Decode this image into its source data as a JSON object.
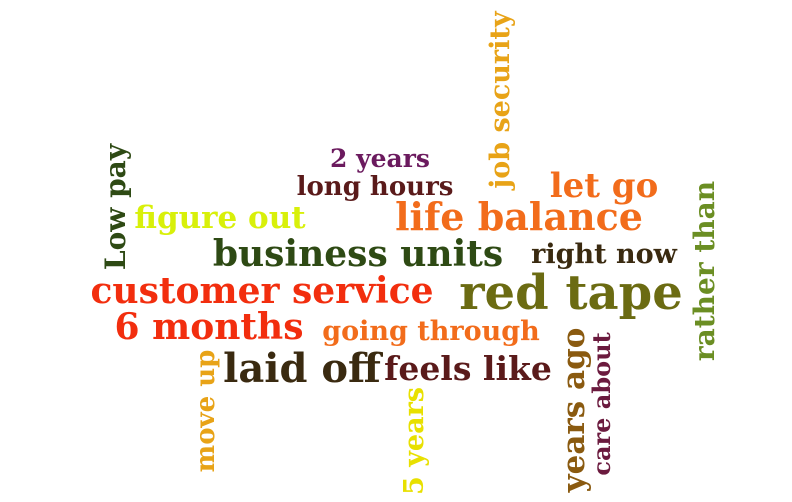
{
  "words": [
    {
      "text": "job security",
      "color": "#E8A317"
    },
    {
      "text": "2 years",
      "color": "#6B1A5E"
    },
    {
      "text": "long hours",
      "color": "#5A1A1A"
    },
    {
      "text": "let go",
      "color": "#F26C1B"
    },
    {
      "text": "Low pay",
      "color": "#2E4A14"
    },
    {
      "text": "figure out",
      "color": "#D8F00A"
    },
    {
      "text": "life balance",
      "color": "#F26C1B"
    },
    {
      "text": "rather than",
      "color": "#6B8E23"
    },
    {
      "text": "business units",
      "color": "#2E4A14"
    },
    {
      "text": "right now",
      "color": "#3A2A10"
    },
    {
      "text": "customer service",
      "color": "#F22E0E"
    },
    {
      "text": "red tape",
      "color": "#6B6B12"
    },
    {
      "text": "6 months",
      "color": "#F22E0E"
    },
    {
      "text": "going through",
      "color": "#F26C1B"
    },
    {
      "text": "years ago",
      "color": "#8A5A10"
    },
    {
      "text": "care about",
      "color": "#6B1A3E"
    },
    {
      "text": "move up",
      "color": "#E8A317"
    },
    {
      "text": "laid off",
      "color": "#3A2A10"
    },
    {
      "text": "feels like",
      "color": "#5A1A1A"
    },
    {
      "text": "5 years",
      "color": "#E8E000"
    }
  ]
}
